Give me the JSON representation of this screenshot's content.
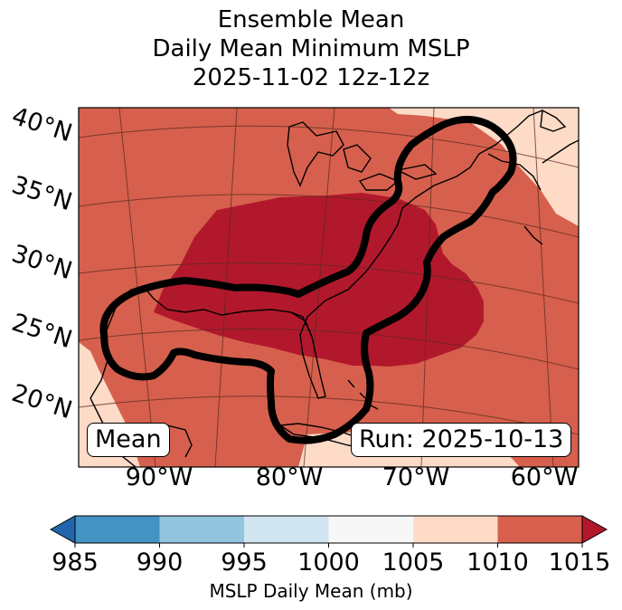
{
  "title": {
    "line1": "Ensemble Mean",
    "line2": "Daily Mean Minimum MSLP",
    "line3": "2025-11-02 12z-12z"
  },
  "map": {
    "lat_labels": [
      "40°N",
      "35°N",
      "30°N",
      "25°N",
      "20°N"
    ],
    "lon_labels": [
      "90°W",
      "80°W",
      "70°W",
      "60°W"
    ],
    "box_left": "Mean",
    "box_right": "Run: 2025-10-13",
    "colors": {
      "band_1005_1010": "#fddbc7",
      "band_1010_1015": "#d6604d",
      "band_above_1015": "#b2182b",
      "contour": "#000000",
      "coastline": "#000000",
      "gridline": "#5a2a20"
    }
  },
  "colorbar": {
    "label": "MSLP Daily Mean (mb)",
    "ticks": [
      "985",
      "990",
      "995",
      "1000",
      "1005",
      "1010",
      "1015"
    ],
    "colors": {
      "under": "#2166ac",
      "b985_990": "#4393c3",
      "b990_995": "#92c5de",
      "b995_1000": "#d1e5f0",
      "b1000_1005": "#f7f7f7",
      "b1005_1010": "#fddbc7",
      "b1010_1015": "#d6604d",
      "over": "#b2182b"
    }
  }
}
